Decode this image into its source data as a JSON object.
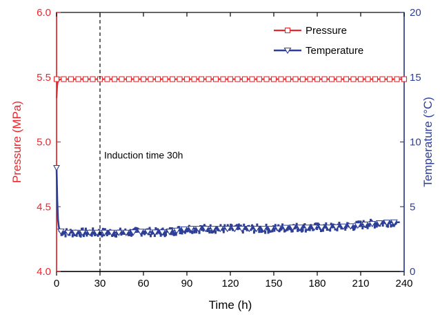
{
  "chart_data": {
    "type": "line",
    "title": "",
    "xlabel": "Time (h)",
    "ylabel_left": "Pressure (MPa)",
    "ylabel_right": "Temperature (°C)",
    "xlim": [
      0,
      240
    ],
    "ylim_left": [
      4.0,
      6.0
    ],
    "ylim_right": [
      0,
      20
    ],
    "x_ticks": [
      "0",
      "30",
      "60",
      "90",
      "120",
      "150",
      "180",
      "210",
      "240"
    ],
    "y_left_ticks": [
      "4.0",
      "4.5",
      "5.0",
      "5.5",
      "6.0"
    ],
    "y_right_ticks": [
      "0",
      "5",
      "10",
      "15",
      "20"
    ],
    "grid": false,
    "legend_position": "top-right",
    "colors": {
      "pressure": "#e8262b",
      "temperature": "#2c3e96"
    },
    "series": [
      {
        "name": "Pressure",
        "axis": "left",
        "marker": "open-square",
        "x": [
          0,
          0.5,
          1,
          2,
          3,
          5,
          10,
          20,
          30,
          40,
          60,
          80,
          100,
          120,
          140,
          160,
          180,
          200,
          220,
          240
        ],
        "y": [
          5.34,
          5.44,
          5.47,
          5.48,
          5.485,
          5.485,
          5.485,
          5.485,
          5.485,
          5.485,
          5.485,
          5.485,
          5.485,
          5.485,
          5.485,
          5.485,
          5.485,
          5.485,
          5.485,
          5.485
        ]
      },
      {
        "name": "Temperature",
        "axis": "right",
        "marker": "open-triangle-down",
        "x": [
          0,
          0.5,
          1,
          1.5,
          2,
          3,
          5,
          10,
          20,
          30,
          40,
          50,
          60,
          70,
          80,
          85,
          90,
          100,
          110,
          120,
          130,
          140,
          150,
          160,
          170,
          180,
          190,
          200,
          205,
          210,
          220,
          230,
          237
        ],
        "y": [
          8.0,
          5.5,
          4.0,
          3.5,
          3.2,
          3.1,
          3.0,
          3.0,
          3.0,
          3.0,
          3.0,
          3.0,
          3.1,
          3.0,
          3.1,
          3.2,
          3.3,
          3.3,
          3.3,
          3.3,
          3.3,
          3.3,
          3.3,
          3.4,
          3.4,
          3.4,
          3.4,
          3.5,
          3.5,
          3.6,
          3.7,
          3.8,
          3.8
        ]
      }
    ],
    "annotations": [
      {
        "type": "vline",
        "x": 30,
        "style": "dashed",
        "text": "Induction time 30h"
      }
    ]
  }
}
